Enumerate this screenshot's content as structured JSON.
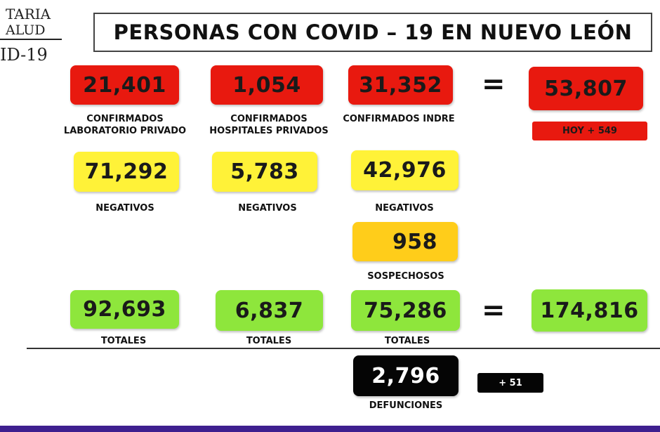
{
  "logo": {
    "line1": "TARIA",
    "line2": "ALUD",
    "line3": "ID-19"
  },
  "title": "PERSONAS CON COVID – 19 EN NUEVO LEÓN",
  "confirmed": {
    "private_lab": {
      "value": "21,401",
      "label_line1": "CONFIRMADOS",
      "label_line2": "LABORATORIO PRIVADO"
    },
    "private_hospitals": {
      "value": "1,054",
      "label_line1": "CONFIRMADOS",
      "label_line2": "HOSPITALES PRIVADOS"
    },
    "indre": {
      "value": "31,352",
      "label_line1": "CONFIRMADOS INDRE"
    },
    "equals": "=",
    "total": {
      "value": "53,807"
    },
    "today_badge": "HOY + 549"
  },
  "negatives": {
    "private_lab": {
      "value": "71,292",
      "label": "NEGATIVOS"
    },
    "private_hospitals": {
      "value": "5,783",
      "label": "NEGATIVOS"
    },
    "indre": {
      "value": "42,976",
      "label": "NEGATIVOS"
    }
  },
  "suspected": {
    "value": "958",
    "label": "SOSPECHOSOS"
  },
  "totals": {
    "private_lab": {
      "value": "92,693",
      "label": "TOTALES"
    },
    "private_hospitals": {
      "value": "6,837",
      "label": "TOTALES"
    },
    "indre": {
      "value": "75,286",
      "label": "TOTALES"
    },
    "equals": "=",
    "grand_total": {
      "value": "174,816"
    }
  },
  "deaths": {
    "value": "2,796",
    "label": "DEFUNCIONES",
    "today_badge": "+ 51"
  },
  "colors": {
    "confirmed": "#e8190f",
    "negative": "#fff238",
    "suspected": "#ffcd1a",
    "total": "#8ee63c",
    "deaths": "#050505",
    "bottom_bar": "#3e1f8f"
  }
}
